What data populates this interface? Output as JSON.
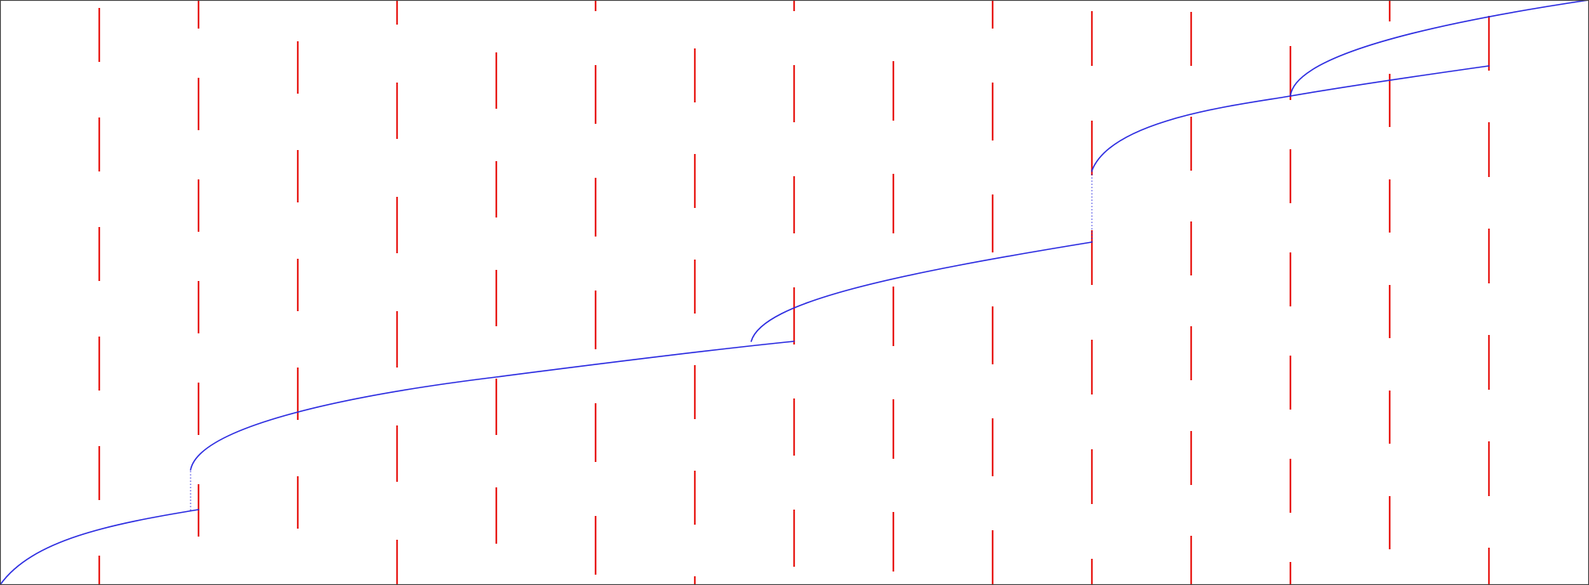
{
  "colors": {
    "obstacle": "#e8201c",
    "path": "#2a2ae0",
    "frame": "#444444",
    "background": "#ffffff"
  }
}
